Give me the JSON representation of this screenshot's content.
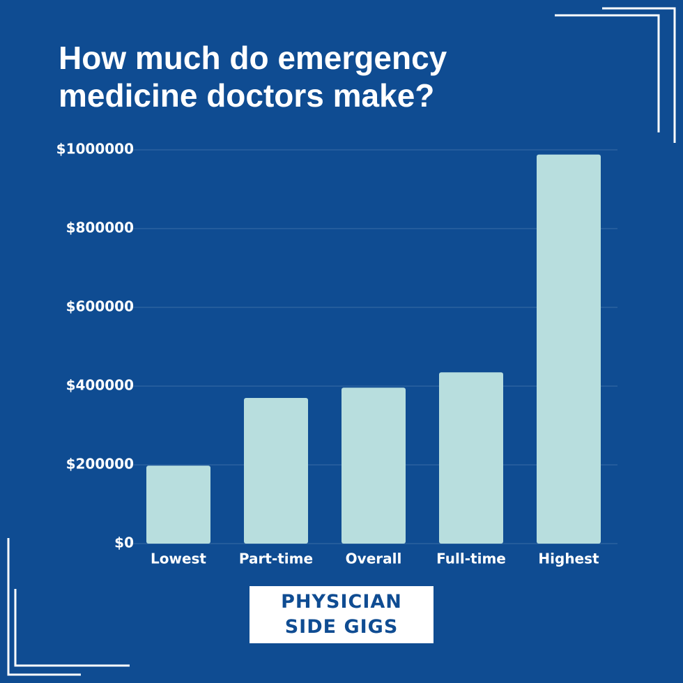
{
  "chart_data": {
    "type": "bar",
    "title": "How much do emergency medicine doctors make?",
    "categories": [
      "Lowest",
      "Part-time",
      "Overall",
      "Full-time",
      "Highest"
    ],
    "values": [
      198000,
      370000,
      396000,
      435000,
      988000
    ],
    "color": "#b8dede",
    "ylim": [
      0,
      1000000
    ],
    "yticks": [
      {
        "value": 0,
        "label": "$0"
      },
      {
        "value": 200000,
        "label": "$200000"
      },
      {
        "value": 400000,
        "label": "$400000"
      },
      {
        "value": 600000,
        "label": "$600000"
      },
      {
        "value": 800000,
        "label": "$800000"
      },
      {
        "value": 1000000,
        "label": "$1000000"
      }
    ],
    "grid": true
  },
  "logo": {
    "lines": [
      "PHYSICIAN",
      "SIDE GIGS"
    ]
  }
}
